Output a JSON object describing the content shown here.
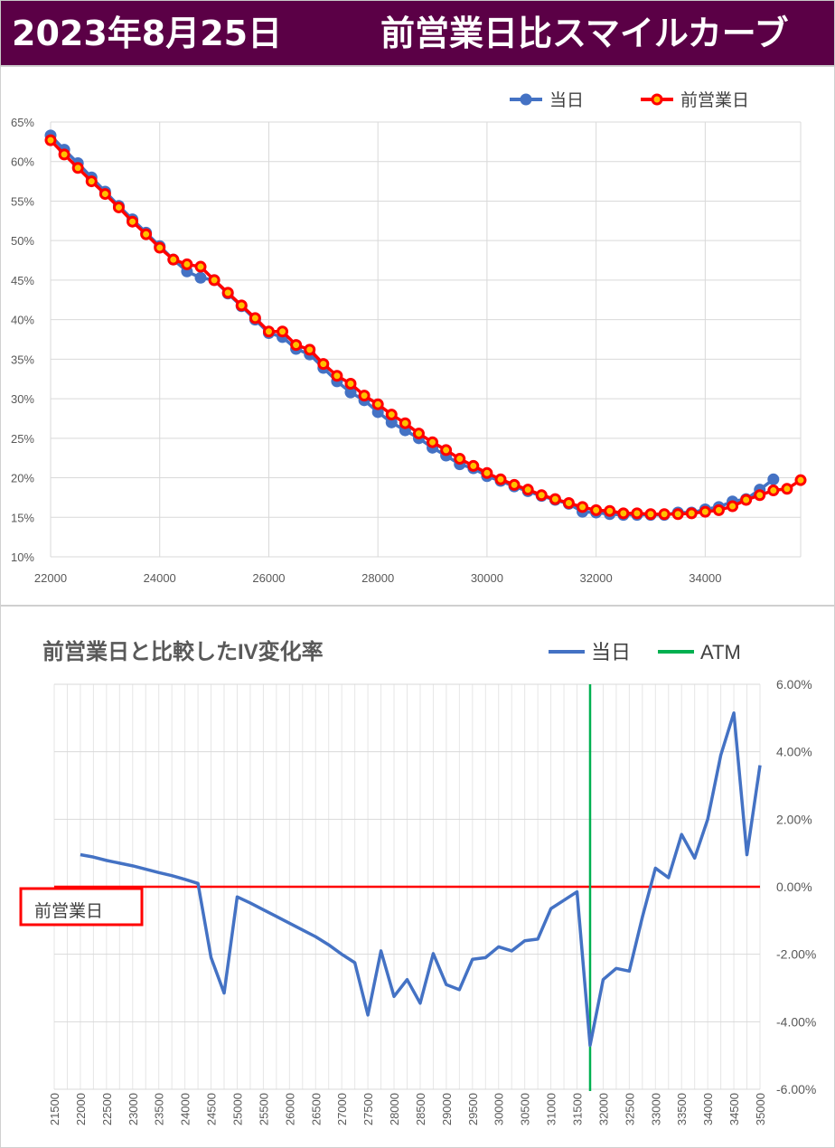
{
  "header": {
    "date": "2023年8月25日",
    "title": "前営業日比スマイルカーブ",
    "background": "#5b0046"
  },
  "chart_data": [
    {
      "type": "line",
      "title": "",
      "xlabel": "",
      "ylabel": "",
      "xlim": [
        22000,
        35750
      ],
      "ylim": [
        10,
        65
      ],
      "x_ticks": [
        "22000",
        "24000",
        "26000",
        "28000",
        "30000",
        "32000",
        "34000"
      ],
      "y_ticks": [
        "10%",
        "15%",
        "20%",
        "25%",
        "30%",
        "35%",
        "40%",
        "45%",
        "50%",
        "55%",
        "60%",
        "65%"
      ],
      "grid": true,
      "legend": "top-right",
      "x": [
        22000,
        22250,
        22500,
        22750,
        23000,
        23250,
        23500,
        23750,
        24000,
        24250,
        24500,
        24750,
        25000,
        25250,
        25500,
        25750,
        26000,
        26250,
        26500,
        26750,
        27000,
        27250,
        27500,
        27750,
        28000,
        28250,
        28500,
        28750,
        29000,
        29250,
        29500,
        29750,
        30000,
        30250,
        30500,
        30750,
        31000,
        31250,
        31500,
        31750,
        32000,
        32250,
        32500,
        32750,
        33000,
        33250,
        33500,
        33750,
        34000,
        34250,
        34500,
        34750,
        35000,
        35250,
        35500,
        35750
      ],
      "series": [
        {
          "name": "当日",
          "color": "#4472c4",
          "values": [
            63.3,
            61.5,
            59.8,
            58.0,
            56.2,
            54.4,
            52.7,
            51.0,
            49.3,
            47.6,
            46.1,
            45.3,
            45.0,
            43.3,
            41.7,
            40.0,
            38.3,
            37.8,
            36.3,
            35.6,
            33.9,
            32.2,
            30.8,
            29.8,
            28.3,
            27.0,
            26.0,
            25.0,
            23.8,
            22.8,
            21.7,
            21.2,
            20.2,
            19.6,
            18.9,
            18.3,
            17.7,
            17.2,
            16.7,
            15.7,
            15.6,
            15.4,
            15.3,
            15.3,
            15.3,
            15.3,
            15.6,
            15.6,
            16.0,
            16.3,
            17.0,
            17.3,
            18.5,
            19.8,
            null,
            null
          ]
        },
        {
          "name": "前営業日",
          "color": "#ff0000",
          "values": [
            62.7,
            60.9,
            59.2,
            57.5,
            55.9,
            54.2,
            52.4,
            50.8,
            49.1,
            47.6,
            47.0,
            46.7,
            45.0,
            43.4,
            41.8,
            40.2,
            38.5,
            38.5,
            36.8,
            36.2,
            34.4,
            32.9,
            31.9,
            30.4,
            29.3,
            28.0,
            26.9,
            25.6,
            24.5,
            23.5,
            22.4,
            21.5,
            20.6,
            19.8,
            19.1,
            18.5,
            17.8,
            17.3,
            16.8,
            16.3,
            15.9,
            15.8,
            15.5,
            15.5,
            15.4,
            15.4,
            15.4,
            15.5,
            15.7,
            15.9,
            16.4,
            17.2,
            17.8,
            18.4,
            18.6,
            19.7
          ]
        }
      ]
    },
    {
      "type": "line",
      "title": "前営業日と比較したIV変化率",
      "xlabel": "",
      "ylabel": "",
      "ylim": [
        -6,
        6
      ],
      "y_ticks": [
        "6.00%",
        "4.00%",
        "2.00%",
        "0.00%",
        "-2.00%",
        "-4.00%",
        "-6.00%"
      ],
      "x_ticks": [
        "21500",
        "22000",
        "22500",
        "23000",
        "23500",
        "24000",
        "24500",
        "25000",
        "25500",
        "26000",
        "26500",
        "27000",
        "27500",
        "28000",
        "28500",
        "29000",
        "29500",
        "30000",
        "30500",
        "31000",
        "31500",
        "32000",
        "32500",
        "33000",
        "33500",
        "34000",
        "34500",
        "35000"
      ],
      "grid": true,
      "legend": "top-right",
      "baseline_label": "前営業日",
      "atm": {
        "label": "ATM",
        "strike": 31750,
        "color": "#00b050"
      },
      "series": [
        {
          "name": "当日",
          "color": "#4472c4",
          "x": [
            22000,
            22250,
            22500,
            22750,
            23000,
            23250,
            23500,
            23750,
            24000,
            24250,
            24500,
            24750,
            25000,
            25250,
            25500,
            25750,
            26000,
            26250,
            26500,
            26750,
            27000,
            27250,
            27500,
            27750,
            28000,
            28250,
            28500,
            28750,
            29000,
            29250,
            29500,
            29750,
            30000,
            30250,
            30500,
            30750,
            31000,
            31250,
            31500,
            31750,
            32000,
            32250,
            32500,
            32750,
            33000,
            33250,
            33500,
            33750,
            34000,
            34250,
            34500,
            34750,
            35000
          ],
          "values": [
            0.95,
            0.88,
            0.78,
            0.7,
            0.62,
            0.52,
            0.42,
            0.33,
            0.22,
            0.1,
            -2.1,
            -3.15,
            -0.3,
            -0.48,
            -0.68,
            -0.88,
            -1.08,
            -1.28,
            -1.48,
            -1.72,
            -2.0,
            -2.25,
            -3.8,
            -1.9,
            -3.25,
            -2.75,
            -3.45,
            -1.98,
            -2.9,
            -3.05,
            -2.15,
            -2.1,
            -1.78,
            -1.9,
            -1.6,
            -1.55,
            -0.65,
            -0.4,
            -0.15,
            -4.7,
            -2.75,
            -2.42,
            -2.5,
            -0.9,
            0.55,
            0.27,
            1.55,
            0.85,
            2.0,
            3.9,
            5.15,
            0.95,
            3.6
          ]
        }
      ]
    }
  ]
}
